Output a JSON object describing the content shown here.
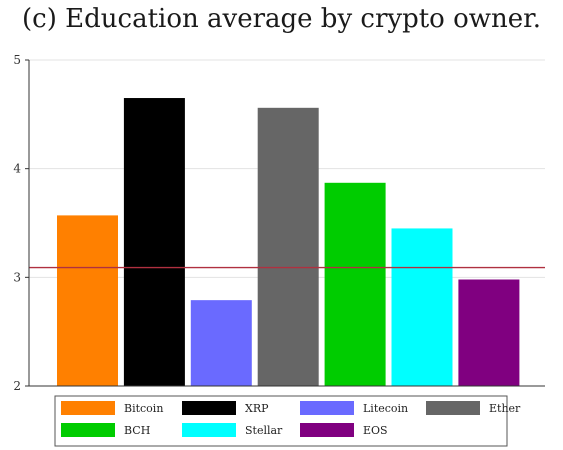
{
  "chart_data": {
    "type": "bar",
    "title": "(c) Education average by crypto owner.",
    "xlabel": "",
    "ylabel": "",
    "ylim": [
      2,
      5
    ],
    "yticks": [
      2,
      3,
      4,
      5
    ],
    "grid": true,
    "reference_line": {
      "value": 3.09,
      "color": "#b03040"
    },
    "legend_position": "bottom",
    "categories": [
      "Bitcoin",
      "XRP",
      "Litecoin",
      "Ether",
      "BCH",
      "Stellar",
      "EOS"
    ],
    "values": [
      3.57,
      4.65,
      2.79,
      4.56,
      3.87,
      3.45,
      2.98
    ],
    "colors": [
      "#ff8000",
      "#000000",
      "#6a6aff",
      "#666666",
      "#00cc00",
      "#00ffff",
      "#800080"
    ]
  }
}
